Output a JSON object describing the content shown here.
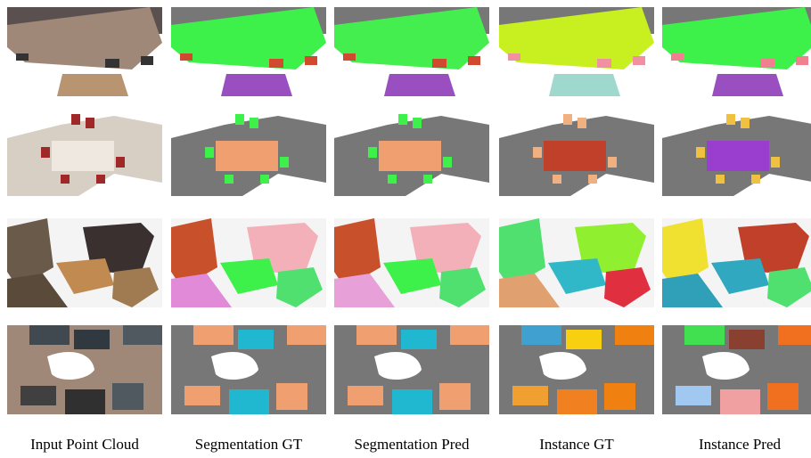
{
  "columns": [
    "Input Point Cloud",
    "Segmentation GT",
    "Segmentation Pred",
    "Instance GT",
    "Instance Pred"
  ]
}
